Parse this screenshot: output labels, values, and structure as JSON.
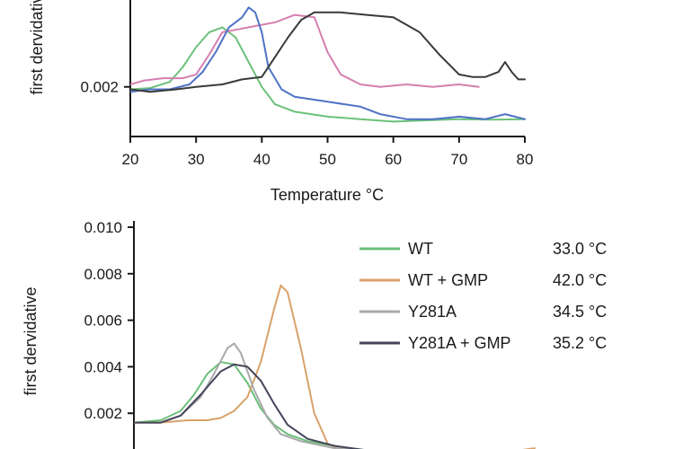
{
  "chart_data": [
    {
      "type": "line",
      "xlabel": "Temperature °C",
      "ylabel": "first dervidative",
      "xlim": [
        20,
        80
      ],
      "ylim": [
        0.0,
        0.0055
      ],
      "x_ticks": [
        "20",
        "30",
        "40",
        "50",
        "60",
        "70",
        "80"
      ],
      "y_ticks": [
        {
          "value": 0.002,
          "label": "0.002"
        }
      ],
      "series": [
        {
          "color": "#6cc07a",
          "x": [
            20,
            23,
            26,
            28,
            30,
            32,
            34,
            36,
            38,
            40,
            42,
            45,
            50,
            55,
            60,
            65,
            70,
            75,
            80
          ],
          "y": [
            0.0019,
            0.00195,
            0.0022,
            0.0028,
            0.0036,
            0.0042,
            0.0044,
            0.004,
            0.003,
            0.002,
            0.0013,
            0.001,
            0.0008,
            0.0007,
            0.0006,
            0.00065,
            0.0007,
            0.00068,
            0.0007
          ]
        },
        {
          "color": "#d57fb0",
          "x": [
            20,
            22,
            25,
            28,
            30,
            32,
            34,
            36,
            38,
            40,
            42,
            45,
            48,
            50,
            52,
            55,
            58,
            62,
            66,
            70,
            73
          ],
          "y": [
            0.0021,
            0.00225,
            0.00235,
            0.00235,
            0.0025,
            0.0033,
            0.0042,
            0.0043,
            0.0044,
            0.0045,
            0.0046,
            0.0049,
            0.0048,
            0.0034,
            0.0025,
            0.0021,
            0.002,
            0.0021,
            0.002,
            0.0021,
            0.002
          ]
        },
        {
          "color": "#4f72c6",
          "x": [
            20,
            23,
            26,
            29,
            31,
            33,
            35,
            37,
            38,
            39,
            40,
            41,
            43,
            45,
            50,
            55,
            58,
            62,
            66,
            70,
            74,
            77,
            80
          ],
          "y": [
            0.0018,
            0.0019,
            0.0019,
            0.0021,
            0.0026,
            0.0034,
            0.0044,
            0.0048,
            0.0052,
            0.005,
            0.0042,
            0.0028,
            0.0019,
            0.0016,
            0.0014,
            0.0012,
            0.0009,
            0.0007,
            0.0007,
            0.0008,
            0.0007,
            0.0009,
            0.0007
          ]
        },
        {
          "color": "#3a3a3a",
          "x": [
            20,
            23,
            27,
            30,
            34,
            37,
            40,
            42,
            44,
            46,
            48,
            52,
            56,
            60,
            64,
            67,
            70,
            72,
            74,
            76,
            77,
            78,
            79,
            80
          ],
          "y": [
            0.0019,
            0.0018,
            0.0019,
            0.002,
            0.0021,
            0.0023,
            0.0024,
            0.0032,
            0.004,
            0.0047,
            0.005,
            0.005,
            0.0049,
            0.0048,
            0.0042,
            0.0033,
            0.0025,
            0.0024,
            0.0024,
            0.0026,
            0.003,
            0.0026,
            0.0023,
            0.0023
          ]
        }
      ]
    },
    {
      "type": "line",
      "xlabel": "",
      "ylabel": "first dervidative",
      "xlim": [
        20,
        80
      ],
      "ylim": [
        0.0,
        0.01
      ],
      "y_ticks": [
        {
          "value": 0.002,
          "label": "0.002"
        },
        {
          "value": 0.004,
          "label": "0.004"
        },
        {
          "value": 0.006,
          "label": "0.006"
        },
        {
          "value": 0.008,
          "label": "0.008"
        },
        {
          "value": 0.01,
          "label": "0.010"
        }
      ],
      "legend_position": "top-right",
      "series": [
        {
          "name": "WT",
          "tm": "33.0 °C",
          "color": "#6cc07a",
          "x": [
            20,
            24,
            27,
            29,
            31,
            33,
            35,
            37,
            39,
            41,
            43,
            46,
            50,
            55,
            60,
            65,
            70,
            75,
            80
          ],
          "y": [
            0.0016,
            0.0017,
            0.0021,
            0.0028,
            0.0037,
            0.0042,
            0.0041,
            0.0033,
            0.0022,
            0.0015,
            0.0011,
            0.0008,
            0.0006,
            0.0004,
            0.0003,
            0.0003,
            0.0003,
            0.0004,
            0.0003
          ]
        },
        {
          "name": "WT + GMP",
          "tm": "42.0 °C",
          "color": "#d9a26a",
          "x": [
            20,
            24,
            28,
            31,
            33,
            35,
            37,
            39,
            41,
            42,
            43,
            45,
            47,
            49,
            51,
            55,
            60,
            65,
            70,
            75,
            80
          ],
          "y": [
            0.0016,
            0.0016,
            0.0017,
            0.0017,
            0.0018,
            0.0021,
            0.0027,
            0.0042,
            0.0065,
            0.0075,
            0.0072,
            0.0048,
            0.002,
            0.0007,
            0.0004,
            0.0004,
            0.0003,
            0.0004,
            0.0004,
            0.0003,
            0.0005
          ]
        },
        {
          "name": "Y281A",
          "tm": "34.5 °C",
          "color": "#a9a9a9",
          "x": [
            20,
            24,
            27,
            30,
            32,
            34,
            35,
            36,
            38,
            40,
            42,
            45,
            50,
            55,
            60,
            65,
            70,
            75,
            80
          ],
          "y": [
            0.0016,
            0.0016,
            0.0019,
            0.0027,
            0.0037,
            0.0048,
            0.005,
            0.0046,
            0.003,
            0.0018,
            0.0011,
            0.0008,
            0.0005,
            0.0004,
            0.0003,
            0.0004,
            0.0003,
            0.0004,
            0.0003
          ]
        },
        {
          "name": "Y281A + GMP",
          "tm": "35.2 °C",
          "color": "#44445a",
          "x": [
            20,
            24,
            27,
            30,
            33,
            35,
            37,
            39,
            41,
            43,
            46,
            50,
            55,
            60,
            65,
            70,
            75,
            80
          ],
          "y": [
            0.0016,
            0.0016,
            0.0019,
            0.0028,
            0.0038,
            0.0041,
            0.004,
            0.0034,
            0.0024,
            0.0015,
            0.0009,
            0.0006,
            0.0004,
            0.0003,
            0.0004,
            0.0003,
            0.0003,
            0.0003
          ]
        }
      ]
    }
  ]
}
